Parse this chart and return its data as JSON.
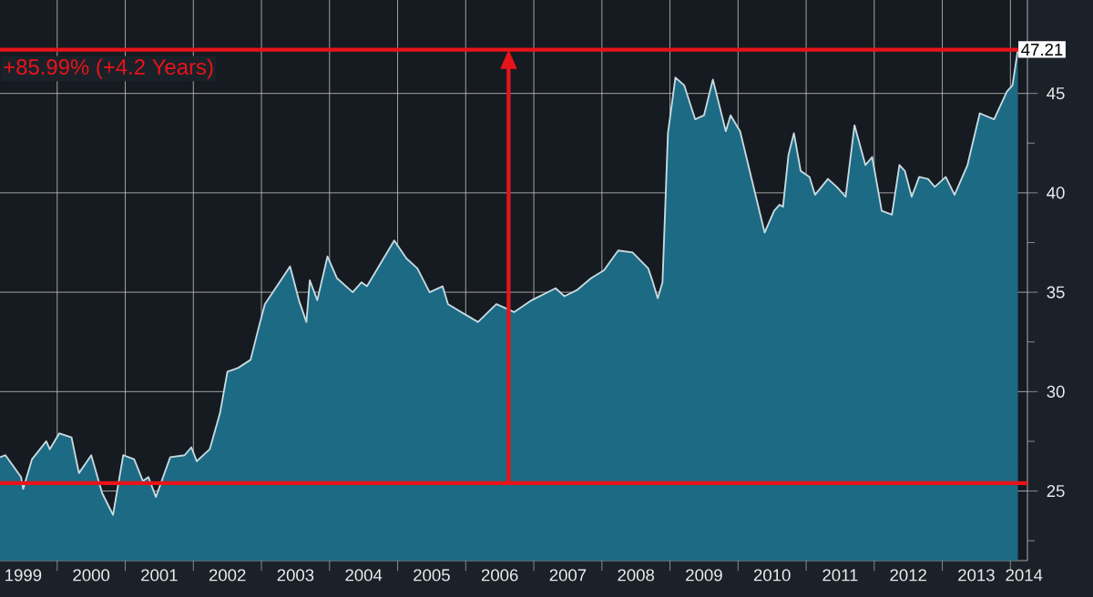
{
  "chart_data": {
    "type": "area",
    "x": [
      1999.16,
      1999.24,
      1999.47,
      1999.5,
      1999.63,
      1999.84,
      1999.89,
      2000.03,
      2000.21,
      2000.32,
      2000.5,
      2000.66,
      2000.82,
      2000.97,
      2001.13,
      2001.26,
      2001.34,
      2001.45,
      2001.66,
      2001.87,
      2001.97,
      2002.05,
      2002.24,
      2002.39,
      2002.5,
      2002.66,
      2002.84,
      2002.95,
      2003.05,
      2003.42,
      2003.55,
      2003.66,
      2003.71,
      2003.82,
      2003.97,
      2004.11,
      2004.34,
      2004.47,
      2004.55,
      2004.95,
      2005.13,
      2005.29,
      2005.47,
      2005.66,
      2005.74,
      2006.18,
      2006.45,
      2006.71,
      2006.97,
      2007.32,
      2007.45,
      2007.63,
      2007.84,
      2008.03,
      2008.24,
      2008.45,
      2008.68,
      2008.74,
      2008.82,
      2008.89,
      2008.97,
      2009.08,
      2009.21,
      2009.37,
      2009.5,
      2009.63,
      2009.82,
      2009.89,
      2010.03,
      2010.39,
      2010.53,
      2010.61,
      2010.66,
      2010.74,
      2010.82,
      2010.92,
      2011.05,
      2011.13,
      2011.32,
      2011.45,
      2011.58,
      2011.71,
      2011.87,
      2011.97,
      2012.11,
      2012.26,
      2012.37,
      2012.45,
      2012.55,
      2012.66,
      2012.79,
      2012.89,
      2013.05,
      2013.18,
      2013.37,
      2013.55,
      2013.76,
      2013.95,
      2014.03,
      2014.11
    ],
    "series": [
      {
        "color": "#1d6a84",
        "values": [
          26.7,
          26.8,
          25.7,
          25.1,
          26.6,
          27.5,
          27.1,
          27.9,
          27.7,
          25.9,
          26.8,
          24.9,
          23.8,
          26.8,
          26.6,
          25.5,
          25.7,
          24.7,
          26.7,
          26.8,
          27.2,
          26.5,
          27.1,
          28.9,
          31.0,
          31.2,
          31.6,
          33.1,
          34.4,
          36.3,
          34.6,
          33.5,
          35.6,
          34.6,
          36.8,
          35.7,
          35.0,
          35.5,
          35.3,
          37.6,
          36.7,
          36.2,
          35.0,
          35.3,
          34.4,
          33.5,
          34.4,
          34.0,
          34.6,
          35.2,
          34.8,
          35.1,
          35.7,
          36.1,
          37.1,
          37.0,
          36.2,
          35.6,
          34.7,
          35.5,
          43.0,
          45.8,
          45.4,
          43.7,
          43.9,
          45.7,
          43.1,
          43.9,
          43.1,
          38.0,
          39.1,
          39.4,
          39.3,
          41.9,
          43.0,
          41.1,
          40.8,
          39.9,
          40.7,
          40.3,
          39.8,
          43.4,
          41.4,
          41.8,
          39.1,
          38.9,
          41.4,
          41.1,
          39.8,
          40.8,
          40.7,
          40.3,
          40.8,
          39.9,
          41.4,
          44.0,
          43.7,
          45.1,
          45.4,
          47.2
        ]
      }
    ],
    "xlim": [
      1999.16,
      2014.25
    ],
    "ylim": [
      21.5,
      49.7
    ],
    "xticks": [
      {
        "value": 2000,
        "label": null
      },
      {
        "value": 2001,
        "label": null
      },
      {
        "value": 2002,
        "label": null
      },
      {
        "value": 2003,
        "label": null
      },
      {
        "value": 2004,
        "label": null
      },
      {
        "value": 2005,
        "label": null
      },
      {
        "value": 2006,
        "label": null
      },
      {
        "value": 2007,
        "label": null
      },
      {
        "value": 2008,
        "label": null
      },
      {
        "value": 2009,
        "label": null
      },
      {
        "value": 2010,
        "label": null
      },
      {
        "value": 2011,
        "label": null
      },
      {
        "value": 2012,
        "label": null
      },
      {
        "value": 2013,
        "label": null
      },
      {
        "value": 2014,
        "label": null
      },
      {
        "value": 1999.5,
        "label": "1999"
      },
      {
        "value": 2000.5,
        "label": "2000"
      },
      {
        "value": 2001.5,
        "label": "2001"
      },
      {
        "value": 2002.5,
        "label": "2002"
      },
      {
        "value": 2003.5,
        "label": "2003"
      },
      {
        "value": 2004.5,
        "label": "2004"
      },
      {
        "value": 2005.5,
        "label": "2005"
      },
      {
        "value": 2006.5,
        "label": "2006"
      },
      {
        "value": 2007.5,
        "label": "2007"
      },
      {
        "value": 2008.5,
        "label": "2008"
      },
      {
        "value": 2009.5,
        "label": "2009"
      },
      {
        "value": 2010.5,
        "label": "2010"
      },
      {
        "value": 2011.5,
        "label": "2011"
      },
      {
        "value": 2012.5,
        "label": "2012"
      },
      {
        "value": 2013.5,
        "label": "2013"
      },
      {
        "value": 2014.2,
        "label": "2014"
      }
    ],
    "yticks": [
      25,
      30,
      35,
      40,
      45,
      {
        "value": 22.5,
        "label": null
      },
      {
        "value": 27.5,
        "label": null
      },
      {
        "value": 32.5,
        "label": null
      },
      {
        "value": 37.5,
        "label": null
      },
      {
        "value": 42.5,
        "label": null
      },
      {
        "value": 47.5,
        "label": null
      }
    ],
    "grid": true,
    "ref_lines": [
      {
        "axis": "y",
        "value": 47.2,
        "color": "#e8141a"
      },
      {
        "axis": "y",
        "value": 25.4,
        "color": "#e8141a"
      },
      {
        "axis": "x",
        "value": 2006.63,
        "color": "#e8141a"
      }
    ],
    "annotations": [
      "+85.99% (+4.2 Years)",
      {
        "text": "47.21",
        "x": 2014.11,
        "y": 47.21
      }
    ]
  }
}
